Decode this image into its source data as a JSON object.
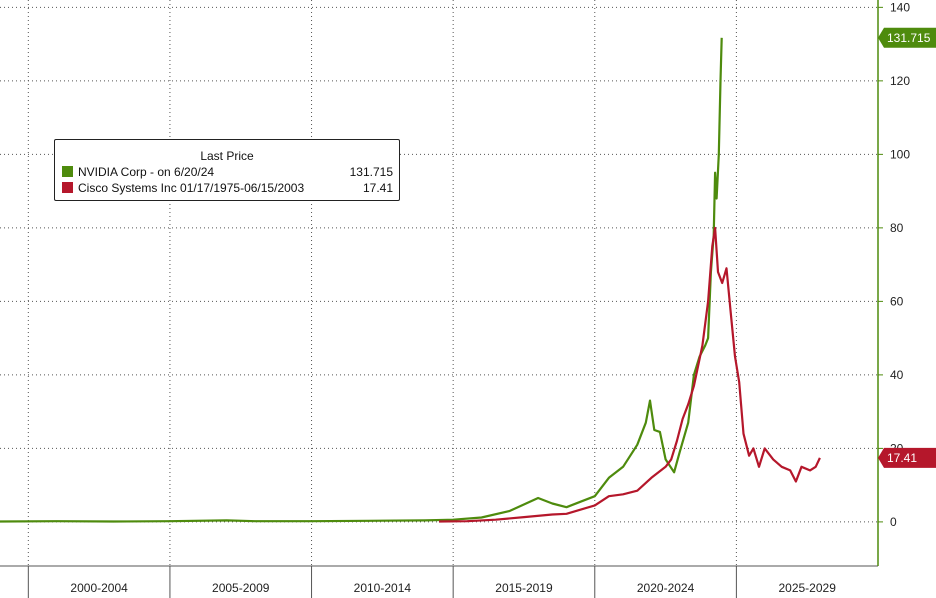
{
  "legend": {
    "title": "Last Price",
    "entries": [
      {
        "name": "NVIDIA Corp -  on 6/20/24",
        "value": "131.715",
        "color": "#4e8b0d"
      },
      {
        "name": "Cisco Systems Inc 01/17/1975-06/15/2003",
        "value": "17.41",
        "color": "#b5172b"
      }
    ]
  },
  "chart_data": {
    "type": "line",
    "title": "",
    "xlabel": "",
    "ylabel": "",
    "x_ticks": [
      "2000-2004",
      "2005-2009",
      "2010-2014",
      "2015-2019",
      "2020-2024",
      "2025-2029"
    ],
    "xlim": [
      1999,
      2030
    ],
    "ylim": [
      -12,
      142
    ],
    "y_ticks": [
      0,
      20,
      40,
      60,
      80,
      100,
      120,
      140
    ],
    "grid": true,
    "legend_position": "top-left",
    "series": [
      {
        "name": "NVIDIA Corp -  on 6/20/24",
        "color": "#4e8b0d",
        "last_value_label": "131.715",
        "points": [
          [
            1999,
            0.1
          ],
          [
            2001,
            0.2
          ],
          [
            2003,
            0.1
          ],
          [
            2005,
            0.2
          ],
          [
            2007,
            0.4
          ],
          [
            2008,
            0.2
          ],
          [
            2010,
            0.2
          ],
          [
            2012,
            0.3
          ],
          [
            2014,
            0.4
          ],
          [
            2015,
            0.6
          ],
          [
            2016,
            1.2
          ],
          [
            2017,
            3.0
          ],
          [
            2018,
            6.5
          ],
          [
            2018.5,
            5.0
          ],
          [
            2019,
            4.0
          ],
          [
            2019.5,
            5.5
          ],
          [
            2020,
            7.0
          ],
          [
            2020.5,
            12.0
          ],
          [
            2021,
            15.0
          ],
          [
            2021.5,
            21.0
          ],
          [
            2021.8,
            27.0
          ],
          [
            2021.95,
            33.0
          ],
          [
            2022.1,
            25.0
          ],
          [
            2022.3,
            24.5
          ],
          [
            2022.5,
            17.0
          ],
          [
            2022.8,
            13.5
          ],
          [
            2023,
            19.0
          ],
          [
            2023.3,
            27.0
          ],
          [
            2023.5,
            40.0
          ],
          [
            2023.7,
            45.0
          ],
          [
            2023.9,
            48.0
          ],
          [
            2024,
            50.0
          ],
          [
            2024.1,
            68.0
          ],
          [
            2024.2,
            78.0
          ],
          [
            2024.25,
            95.0
          ],
          [
            2024.3,
            88.0
          ],
          [
            2024.38,
            100.0
          ],
          [
            2024.44,
            120.0
          ],
          [
            2024.48,
            131.715
          ]
        ]
      },
      {
        "name": "Cisco Systems Inc 01/17/1975-06/15/2003",
        "color": "#b5172b",
        "last_value_label": "17.41",
        "points": [
          [
            2014.5,
            0.1
          ],
          [
            2015.5,
            0.2
          ],
          [
            2016.5,
            0.6
          ],
          [
            2017.5,
            1.3
          ],
          [
            2018.5,
            2.0
          ],
          [
            2019,
            2.2
          ],
          [
            2020,
            4.5
          ],
          [
            2020.5,
            7.0
          ],
          [
            2021,
            7.5
          ],
          [
            2021.5,
            8.5
          ],
          [
            2022,
            12.0
          ],
          [
            2022.5,
            15.0
          ],
          [
            2022.7,
            17.0
          ],
          [
            2022.9,
            22.0
          ],
          [
            2023.1,
            28.0
          ],
          [
            2023.3,
            32.0
          ],
          [
            2023.5,
            37.0
          ],
          [
            2023.8,
            48.0
          ],
          [
            2024.0,
            60.0
          ],
          [
            2024.15,
            75.0
          ],
          [
            2024.25,
            80.0
          ],
          [
            2024.35,
            68.0
          ],
          [
            2024.5,
            65.0
          ],
          [
            2024.65,
            69.0
          ],
          [
            2024.8,
            57.0
          ],
          [
            2024.95,
            45.0
          ],
          [
            2025.1,
            38.0
          ],
          [
            2025.25,
            24.0
          ],
          [
            2025.45,
            18.0
          ],
          [
            2025.6,
            20.0
          ],
          [
            2025.8,
            15.0
          ],
          [
            2026.0,
            20.0
          ],
          [
            2026.3,
            17.0
          ],
          [
            2026.6,
            15.0
          ],
          [
            2026.9,
            14.0
          ],
          [
            2027.1,
            11.0
          ],
          [
            2027.3,
            15.0
          ],
          [
            2027.6,
            14.0
          ],
          [
            2027.8,
            15.0
          ],
          [
            2027.95,
            17.41
          ]
        ]
      }
    ]
  }
}
